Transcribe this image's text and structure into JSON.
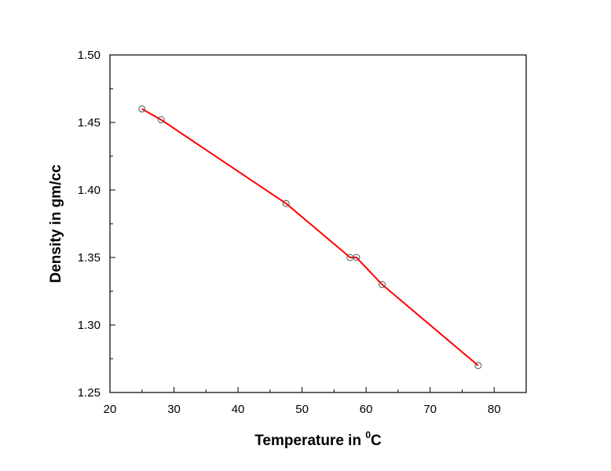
{
  "chart_data": {
    "type": "line",
    "title": "",
    "xlabel": "Temperature in ",
    "xlabel_sup": "0",
    "xlabel_unit": "C",
    "ylabel": "Density in gm/cc",
    "xlim": [
      20,
      85
    ],
    "ylim": [
      1.25,
      1.5
    ],
    "x_ticks": [
      20,
      30,
      40,
      50,
      60,
      70,
      80
    ],
    "y_ticks": [
      1.25,
      1.3,
      1.35,
      1.4,
      1.45,
      1.5
    ],
    "x_tick_labels": [
      "20",
      "30",
      "40",
      "50",
      "60",
      "70",
      "80"
    ],
    "y_tick_labels": [
      "1.25",
      "1.30",
      "1.35",
      "1.40",
      "1.45",
      "1.50"
    ],
    "grid": false,
    "series": [
      {
        "marker": "open-circle",
        "line_color": "#ff0000",
        "marker_color": "#555555",
        "x": [
          25.0,
          28.0,
          47.5,
          57.5,
          58.5,
          62.5,
          77.5
        ],
        "y": [
          1.46,
          1.452,
          1.39,
          1.35,
          1.35,
          1.33,
          1.27
        ]
      }
    ]
  }
}
